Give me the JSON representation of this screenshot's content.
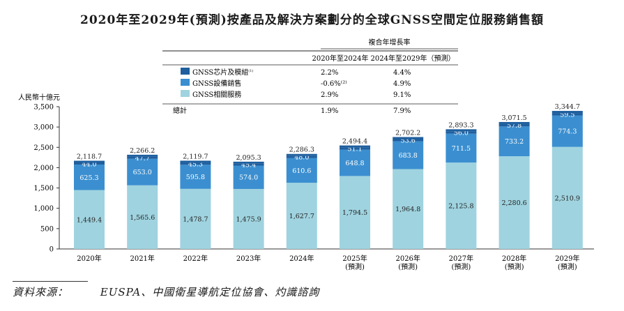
{
  "title": "2020年至2029年(預測)按產品及解決方案劃分的全球GNSS空間定位服務銷售額",
  "source_label": "資料來源：",
  "source_text": "EUSPA、中國衛星導航定位協會、灼識諮詢",
  "colors": {
    "chips": "#1f5f9e",
    "equipment": "#3b8fd0",
    "services": "#9fd3df",
    "total_cap": "#1f5f9e"
  },
  "cagr_table": {
    "header": "複合年增長率",
    "columns": [
      "2020年至2024年",
      "2024年至2029年（預測）"
    ],
    "rows": [
      {
        "label": "GNSS芯片及模組",
        "sup": "(1)",
        "color_key": "chips",
        "values": [
          "2.2%",
          "4.4%"
        ]
      },
      {
        "label": "GNSS設備銷售",
        "sup": "",
        "color_key": "equipment",
        "values": [
          "-0.6%⁽²⁾",
          "4.9%"
        ]
      },
      {
        "label": "GNSS相關服務",
        "sup": "",
        "color_key": "services",
        "values": [
          "2.9%",
          "9.1%"
        ]
      }
    ],
    "total_row": {
      "label": "總計",
      "values": [
        "1.9%",
        "7.9%"
      ]
    }
  },
  "chart_data": {
    "type": "bar",
    "stacked": true,
    "ylabel": "人民幣十億元",
    "ylim": [
      0,
      3500
    ],
    "yticks": [
      0,
      500,
      1000,
      1500,
      2000,
      2500,
      3000,
      3500
    ],
    "ytick_labels": [
      "0",
      "500",
      "1,000",
      "1,500",
      "2,000",
      "2,500",
      "3,000",
      "3,500"
    ],
    "categories": [
      "2020年",
      "2021年",
      "2022年",
      "2023年",
      "2024年",
      "2025年",
      "2026年",
      "2027年",
      "2028年",
      "2029年"
    ],
    "category_sublabels": [
      "",
      "",
      "",
      "",
      "",
      "(預測)",
      "(預測)",
      "(預測)",
      "(預測)",
      "(預測)"
    ],
    "series": [
      {
        "name": "GNSS相關服務",
        "color_key": "services",
        "values": [
          1449.4,
          1565.6,
          1478.7,
          1475.9,
          1627.7,
          1794.5,
          1964.8,
          2125.8,
          2280.6,
          2510.9
        ],
        "labels": [
          "1,449.4",
          "1,565.6",
          "1,478.7",
          "1,475.9",
          "1,627.7",
          "1,794.5",
          "1,964.8",
          "2,125.8",
          "2,280.6",
          "2,510.9"
        ]
      },
      {
        "name": "GNSS設備銷售",
        "color_key": "equipment",
        "values": [
          625.3,
          653.0,
          595.8,
          574.0,
          610.6,
          648.8,
          683.8,
          711.5,
          733.2,
          774.3
        ],
        "labels": [
          "625.3",
          "653.0",
          "595.8",
          "574.0",
          "610.6",
          "648.8",
          "683.8",
          "711.5",
          "733.2",
          "774.3"
        ]
      },
      {
        "name": "GNSS芯片及模組",
        "color_key": "chips",
        "values": [
          44.0,
          47.7,
          45.3,
          45.4,
          48.0,
          51.1,
          53.6,
          56.0,
          57.8,
          59.5
        ],
        "labels": [
          "44.0",
          "47.7",
          "45.3",
          "45.4",
          "48.0",
          "51.1",
          "53.6",
          "56.0",
          "57.8",
          "59.5"
        ]
      }
    ],
    "totals": [
      2118.7,
      2266.2,
      2119.7,
      2095.3,
      2286.3,
      2494.4,
      2702.2,
      2893.3,
      3071.5,
      3344.7
    ],
    "total_labels": [
      "2,118.7",
      "2,266.2",
      "2,119.7",
      "2,095.3",
      "2,286.3",
      "2,494.4",
      "2,702.2",
      "2,893.3",
      "3,071.5",
      "3,344.7"
    ]
  }
}
